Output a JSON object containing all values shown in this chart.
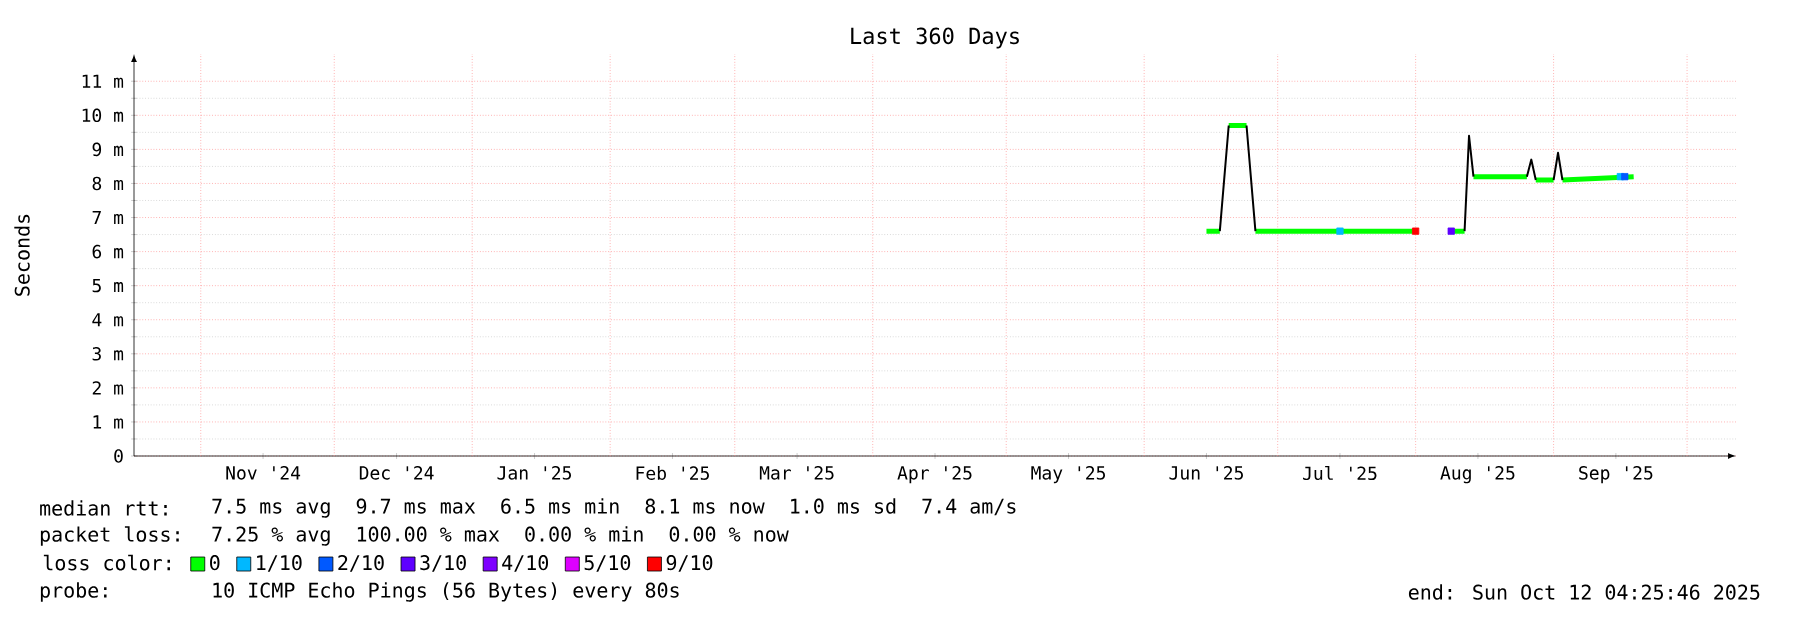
{
  "chart_data": {
    "type": "line",
    "title": "Last 360 Days",
    "ylabel": "Seconds",
    "xlim": [
      "2024-10-17",
      "2025-10-12"
    ],
    "xticks": [
      {
        "value": "2024-11-01",
        "label": null
      },
      {
        "value": "2024-11-15",
        "label": "Nov '24"
      },
      {
        "value": "2024-12-01",
        "label": null
      },
      {
        "value": "2024-12-15",
        "label": "Dec '24"
      },
      {
        "value": "2025-01-01",
        "label": null
      },
      {
        "value": "2025-01-15",
        "label": "Jan '25"
      },
      {
        "value": "2025-02-01",
        "label": null
      },
      {
        "value": "2025-02-15",
        "label": "Feb '25"
      },
      {
        "value": "2025-03-01",
        "label": null
      },
      {
        "value": "2025-03-15",
        "label": "Mar '25"
      },
      {
        "value": "2025-04-01",
        "label": null
      },
      {
        "value": "2025-04-15",
        "label": "Apr '25"
      },
      {
        "value": "2025-05-01",
        "label": null
      },
      {
        "value": "2025-05-15",
        "label": "May '25"
      },
      {
        "value": "2025-06-01",
        "label": null
      },
      {
        "value": "2025-06-15",
        "label": "Jun '25"
      },
      {
        "value": "2025-07-01",
        "label": null
      },
      {
        "value": "2025-07-15",
        "label": "Jul '25"
      },
      {
        "value": "2025-08-01",
        "label": null
      },
      {
        "value": "2025-08-15",
        "label": "Aug '25"
      },
      {
        "value": "2025-09-01",
        "label": null
      },
      {
        "value": "2025-09-15",
        "label": "Sep '25"
      },
      {
        "value": "2025-10-01",
        "label": null
      }
    ],
    "ylim": [
      0,
      11.8
    ],
    "yticks": [
      {
        "value": 0,
        "label": "0"
      },
      {
        "value": 1,
        "label": "1 m"
      },
      {
        "value": 2,
        "label": "2 m"
      },
      {
        "value": 3,
        "label": "3 m"
      },
      {
        "value": 4,
        "label": "4 m"
      },
      {
        "value": 5,
        "label": "5 m"
      },
      {
        "value": 6,
        "label": "6 m"
      },
      {
        "value": 7,
        "label": "7 m"
      },
      {
        "value": 8,
        "label": "8 m"
      },
      {
        "value": 9,
        "label": "9 m"
      },
      {
        "value": 10,
        "label": "10 m"
      },
      {
        "value": 11,
        "label": "11 m"
      }
    ],
    "grid": true,
    "legend": "bottom",
    "legend_title": "loss color:",
    "series": [
      {
        "name": "0",
        "color": "#00ff00",
        "marker": "none",
        "line_style": "solid",
        "x": [
          "2025-06-15",
          "2025-06-18",
          "2025-06-19",
          "2025-06-20",
          "2025-06-24",
          "2025-06-25",
          "2025-06-26",
          "2025-08-01",
          "2025-08-05",
          "2025-08-09",
          "2025-08-12",
          "2025-08-13",
          "2025-08-14",
          "2025-08-26",
          "2025-08-27",
          "2025-08-28",
          "2025-09-01",
          "2025-09-02",
          "2025-09-03",
          "2025-09-19"
        ],
        "values": [
          6.6,
          6.6,
          null,
          9.7,
          9.7,
          null,
          6.6,
          6.6,
          null,
          6.6,
          6.6,
          null,
          8.2,
          8.2,
          null,
          8.1,
          8.1,
          null,
          8.1,
          8.2
        ]
      },
      {
        "color": "#000000",
        "marker": "none",
        "line_style": "solid",
        "x": [
          "2025-06-18",
          "2025-06-20",
          "2025-06-22",
          "2025-06-24",
          "2025-06-26",
          "2025-07-20",
          "2025-08-12",
          "2025-08-13",
          "2025-08-14",
          "2025-08-20",
          "2025-08-26",
          "2025-08-27",
          "2025-08-28",
          "2025-08-30",
          "2025-09-01",
          "2025-09-02",
          "2025-09-03"
        ],
        "values": [
          6.6,
          9.7,
          null,
          9.7,
          6.6,
          null,
          6.6,
          9.4,
          8.2,
          null,
          8.2,
          8.7,
          8.1,
          null,
          8.1,
          8.9,
          8.1
        ]
      },
      {
        "type": "scatter",
        "name": "1/10",
        "color": "#00b8ff",
        "marker": "square",
        "x": [
          "2025-07-15",
          "2025-09-16"
        ],
        "values": [
          6.6,
          8.2
        ]
      },
      {
        "type": "scatter",
        "name": "2/10",
        "color": "#0059ff",
        "marker": "square",
        "x": [
          "2025-09-17"
        ],
        "values": [
          8.2
        ]
      },
      {
        "type": "scatter",
        "name": "3/10",
        "color": "#5e00ff",
        "marker": "square",
        "x": [
          "2025-08-09"
        ],
        "values": [
          6.6
        ]
      },
      {
        "type": "scatter",
        "name": "4/10",
        "color": "#7e00ff",
        "marker": "square"
      },
      {
        "type": "scatter",
        "name": "5/10",
        "color": "#dd00ff",
        "marker": "square"
      },
      {
        "type": "scatter",
        "name": "9/10",
        "color": "#ff0000",
        "marker": "square",
        "x": [
          "2025-08-01"
        ],
        "values": [
          6.6
        ]
      }
    ],
    "annotations": [
      "median rtt:",
      "7.5 ms avg",
      "9.7 ms max",
      "6.5 ms min",
      "8.1 ms now",
      "1.0 ms sd",
      "7.4   am/s",
      "packet loss:",
      "7.25 % avg",
      "100.00 % max",
      "0.00 % min",
      "0.00 % now",
      "probe:",
      "10 ICMP Echo Pings (56 Bytes) every 80s",
      "end: Sun Oct 12 04:25:46 2025"
    ]
  }
}
